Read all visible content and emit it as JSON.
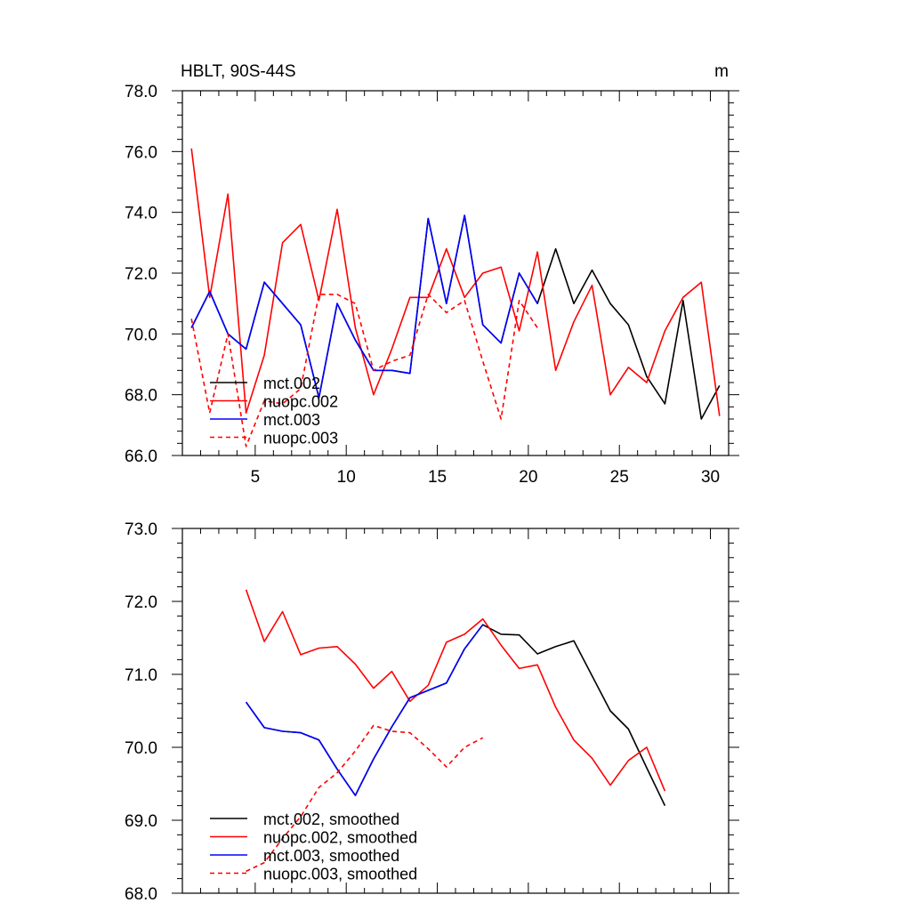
{
  "chart_data": [
    {
      "type": "line",
      "title": "HBLT, 90S-44S",
      "units": "m",
      "xlim": [
        1,
        31
      ],
      "ylim": [
        66.0,
        78.0
      ],
      "xticks": [
        5,
        10,
        15,
        20,
        25,
        30
      ],
      "xtick_labels": [
        "5",
        "10",
        "15",
        "20",
        "25",
        "30"
      ],
      "yticks": [
        66.0,
        68.0,
        70.0,
        72.0,
        74.0,
        76.0,
        78.0
      ],
      "ytick_labels": [
        "66.0",
        "68.0",
        "70.0",
        "72.0",
        "74.0",
        "76.0",
        "78.0"
      ],
      "legend_position": "bottom-left",
      "series": [
        {
          "name": "mct.002",
          "color": "#000000",
          "dash": "solid",
          "x": [
            1.5,
            2.5,
            3.5,
            4.5,
            5.5,
            6.5,
            7.5,
            8.5,
            9.5,
            10.5,
            11.5,
            12.5,
            13.5,
            14.5,
            15.5,
            16.5,
            17.5,
            18.5,
            19.5,
            20.5,
            21.5,
            22.5,
            23.5,
            24.5,
            25.5,
            26.5,
            27.5,
            28.5,
            29.5,
            30.5
          ],
          "values": [
            70.2,
            71.4,
            70.0,
            69.5,
            71.7,
            71.0,
            70.3,
            67.9,
            71.0,
            69.8,
            68.8,
            68.8,
            68.7,
            73.8,
            71.0,
            73.9,
            70.3,
            69.7,
            72.0,
            71.0,
            72.8,
            71.0,
            72.1,
            71.0,
            70.3,
            68.6,
            67.7,
            71.1,
            67.2,
            68.3
          ]
        },
        {
          "name": "nuopc.002",
          "color": "#ff0000",
          "dash": "solid",
          "x": [
            1.5,
            2.5,
            3.5,
            4.5,
            5.5,
            6.5,
            7.5,
            8.5,
            9.5,
            10.5,
            11.5,
            12.5,
            13.5,
            14.5,
            15.5,
            16.5,
            17.5,
            18.5,
            19.5,
            20.5,
            21.5,
            22.5,
            23.5,
            24.5,
            25.5,
            26.5,
            27.5,
            28.5,
            29.5,
            30.5
          ],
          "values": [
            76.1,
            71.2,
            74.6,
            67.4,
            69.3,
            73.0,
            73.6,
            71.1,
            74.1,
            70.2,
            68.0,
            69.5,
            71.2,
            71.2,
            72.8,
            71.2,
            72.0,
            72.2,
            70.1,
            72.7,
            68.8,
            70.4,
            71.6,
            68.0,
            68.9,
            68.4,
            70.1,
            71.2,
            71.7,
            67.3
          ]
        },
        {
          "name": "mct.003",
          "color": "#0000ff",
          "dash": "solid",
          "x": [
            1.5,
            2.5,
            3.5,
            4.5,
            5.5,
            6.5,
            7.5,
            8.5,
            9.5,
            10.5,
            11.5,
            12.5,
            13.5,
            14.5,
            15.5,
            16.5,
            17.5,
            18.5,
            19.5,
            20.5
          ],
          "values": [
            70.2,
            71.4,
            70.0,
            69.5,
            71.7,
            71.0,
            70.3,
            67.9,
            71.0,
            69.8,
            68.8,
            68.8,
            68.7,
            73.8,
            71.0,
            73.9,
            70.3,
            69.7,
            72.0,
            71.0
          ]
        },
        {
          "name": "nuopc.003",
          "color": "#ff0000",
          "dash": "dashed",
          "x": [
            1.5,
            2.5,
            3.5,
            4.5,
            5.5,
            6.5,
            7.5,
            8.5,
            9.5,
            10.5,
            11.5,
            12.5,
            13.5,
            14.5,
            15.5,
            16.5,
            17.5,
            18.5,
            19.5,
            20.5
          ],
          "values": [
            70.5,
            67.4,
            70.0,
            66.3,
            67.8,
            67.7,
            68.2,
            71.3,
            71.3,
            71.0,
            68.8,
            69.1,
            69.3,
            71.3,
            70.7,
            71.1,
            69.1,
            67.2,
            71.1,
            70.2
          ]
        }
      ]
    },
    {
      "type": "line",
      "title": "",
      "xlim": [
        1,
        31
      ],
      "ylim": [
        68.0,
        73.0
      ],
      "xticks": [
        5,
        10,
        15,
        20,
        25,
        30
      ],
      "xtick_labels": [],
      "yticks": [
        68.0,
        69.0,
        70.0,
        71.0,
        72.0,
        73.0
      ],
      "ytick_labels": [
        "68.0",
        "69.0",
        "70.0",
        "71.0",
        "72.0",
        "73.0"
      ],
      "legend_position": "bottom-left",
      "series": [
        {
          "name": "mct.002, smoothed",
          "color": "#000000",
          "dash": "solid",
          "x": [
            4.5,
            5.5,
            6.5,
            7.5,
            8.5,
            9.5,
            10.5,
            11.5,
            12.5,
            13.5,
            14.5,
            15.5,
            16.5,
            17.5,
            18.5,
            19.5,
            20.5,
            21.5,
            22.5,
            23.5,
            24.5,
            25.5,
            26.5,
            27.5
          ],
          "values": [
            70.62,
            70.27,
            70.22,
            70.2,
            70.1,
            69.7,
            69.34,
            69.84,
            70.28,
            70.68,
            70.78,
            70.88,
            71.35,
            71.68,
            71.55,
            71.54,
            71.28,
            71.38,
            71.46,
            70.98,
            70.5,
            70.25,
            69.72,
            69.2
          ]
        },
        {
          "name": "nuopc.002, smoothed",
          "color": "#ff0000",
          "dash": "solid",
          "x": [
            4.5,
            5.5,
            6.5,
            7.5,
            8.5,
            9.5,
            10.5,
            11.5,
            12.5,
            13.5,
            14.5,
            15.5,
            16.5,
            17.5,
            18.5,
            19.5,
            20.5,
            21.5,
            22.5,
            23.5,
            24.5,
            25.5,
            26.5,
            27.5
          ],
          "values": [
            72.16,
            71.45,
            71.86,
            71.27,
            71.36,
            71.38,
            71.14,
            70.81,
            71.04,
            70.63,
            70.85,
            71.44,
            71.55,
            71.76,
            71.4,
            71.08,
            71.13,
            70.55,
            70.1,
            69.85,
            69.48,
            69.82,
            70.0,
            69.4
          ]
        },
        {
          "name": "mct.003, smoothed",
          "color": "#0000ff",
          "dash": "solid",
          "x": [
            4.5,
            5.5,
            6.5,
            7.5,
            8.5,
            9.5,
            10.5,
            11.5,
            12.5,
            13.5,
            14.5,
            15.5,
            16.5,
            17.5
          ],
          "values": [
            70.62,
            70.27,
            70.22,
            70.2,
            70.1,
            69.7,
            69.34,
            69.84,
            70.28,
            70.68,
            70.78,
            70.88,
            71.35,
            71.68
          ]
        },
        {
          "name": "nuopc.003, smoothed",
          "color": "#ff0000",
          "dash": "dashed",
          "x": [
            4.5,
            5.5,
            6.5,
            7.5,
            8.5,
            9.5,
            10.5,
            11.5,
            12.5,
            13.5,
            14.5,
            15.5,
            16.5,
            17.5
          ],
          "values": [
            68.3,
            68.42,
            68.75,
            69.05,
            69.45,
            69.65,
            69.95,
            70.3,
            70.22,
            70.2,
            69.98,
            69.73,
            70.0,
            70.13
          ]
        }
      ]
    }
  ]
}
